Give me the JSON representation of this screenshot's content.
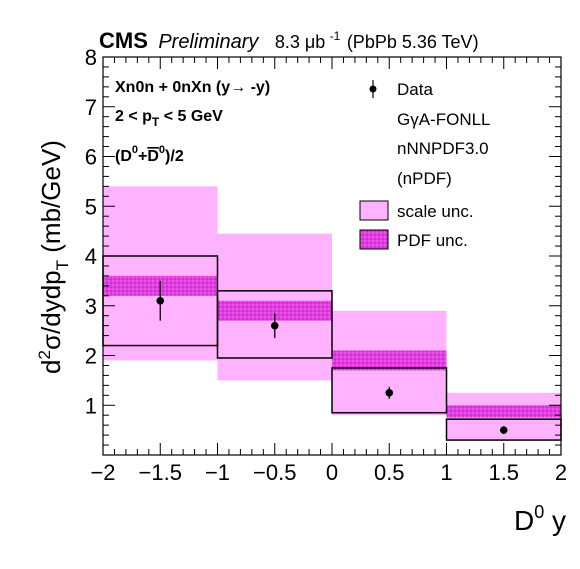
{
  "header": {
    "experiment": "CMS",
    "status": "Preliminary",
    "lumi_value": "8.3 μb",
    "lumi_exp": "-1",
    "system": "(PbPb 5.36 TeV)"
  },
  "annotations": {
    "line1": "Xn0n + 0nXn (y→ -y)",
    "line2": "2 < p_T < 5 GeV",
    "line3": "(D0+D0bar)/2"
  },
  "legend": {
    "data": "Data",
    "model_lines": [
      "GγA-FONLL",
      "nNNPDF3.0",
      "(nPDF)"
    ],
    "scale": "scale unc.",
    "pdf": "PDF unc."
  },
  "colors": {
    "scale_band": "#ffb3ff",
    "pdf_band": "#e03ce0",
    "data": "#000000"
  },
  "chart_data": {
    "type": "bar",
    "xlabel": "D0 y",
    "ylabel": "d2σ/dydp_T (mb/GeV)",
    "xlim": [
      -2,
      2
    ],
    "ylim": [
      0,
      8
    ],
    "x_ticks": [
      "−2",
      "−1.5",
      "−1",
      "−0.5",
      "0",
      "0.5",
      "1",
      "1.5",
      "2"
    ],
    "y_ticks": [
      "1",
      "2",
      "3",
      "4",
      "5",
      "6",
      "7",
      "8"
    ],
    "bins": [
      {
        "lo": -2,
        "hi": -1,
        "scale": [
          1.9,
          5.4
        ],
        "pdf": [
          3.2,
          3.6
        ],
        "box": [
          2.2,
          4.0
        ],
        "data": 3.1,
        "err": 0.4
      },
      {
        "lo": -1,
        "hi": 0,
        "scale": [
          1.5,
          4.45
        ],
        "pdf": [
          2.7,
          3.1
        ],
        "box": [
          1.95,
          3.3
        ],
        "data": 2.6,
        "err": 0.25
      },
      {
        "lo": 0,
        "hi": 1,
        "scale": [
          0.8,
          2.9
        ],
        "pdf": [
          1.7,
          2.1
        ],
        "box": [
          0.85,
          1.75
        ],
        "data": 1.25,
        "err": 0.12
      },
      {
        "lo": 1,
        "hi": 2,
        "scale": [
          0.3,
          1.25
        ],
        "pdf": [
          0.75,
          1.0
        ],
        "box": [
          0.3,
          0.72
        ],
        "data": 0.5,
        "err": 0.08
      }
    ]
  }
}
